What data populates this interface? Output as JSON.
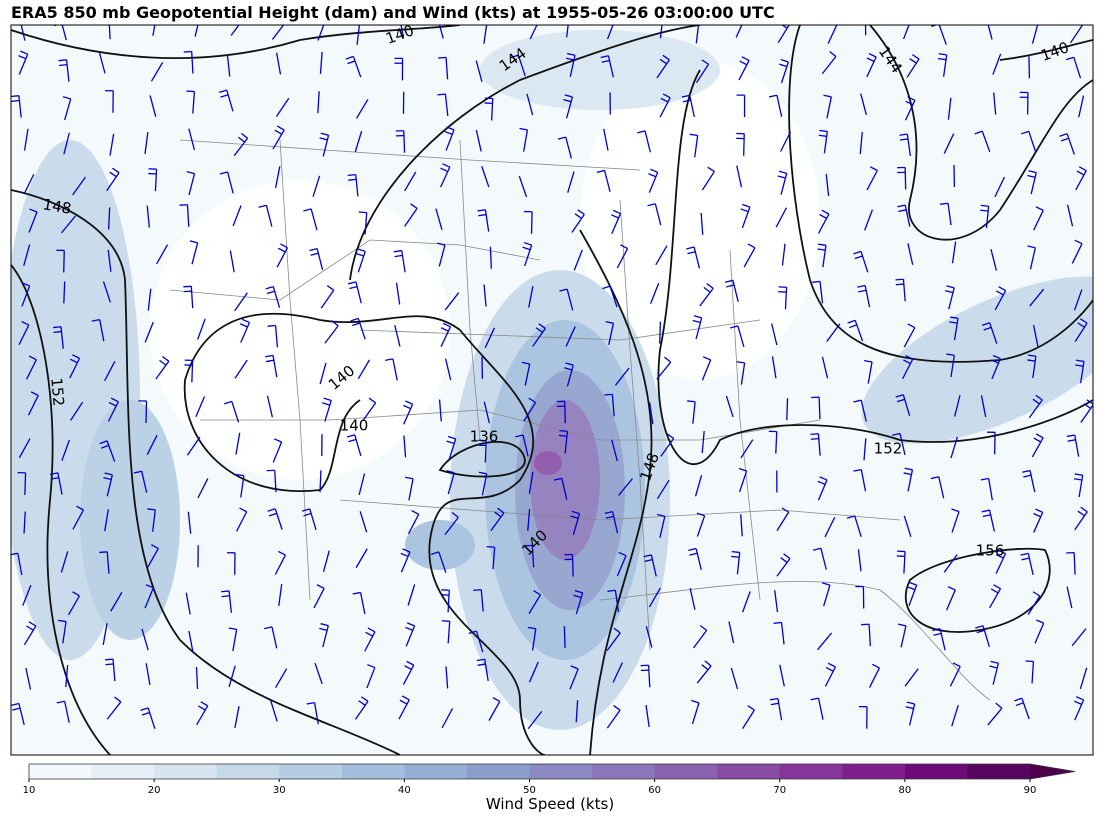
{
  "title": "ERA5 850 mb Geopotential Height (dam) and Wind (kts) at 1955-05-26 03:00:00 UTC",
  "map": {
    "contour_labels": [
      "140",
      "144",
      "144",
      "140",
      "148",
      "152",
      "140",
      "140",
      "136",
      "148",
      "152",
      "140",
      "156"
    ]
  },
  "colorbar": {
    "label": "Wind Speed (kts)",
    "lim": [
      10,
      90
    ],
    "ticks": [
      10,
      20,
      30,
      40,
      50,
      60,
      70,
      80,
      90
    ],
    "colors": [
      "#f2f8fb",
      "#e6eff6",
      "#d8e5f0",
      "#c6d9e9",
      "#b5cce3",
      "#a3bedc",
      "#95aed3",
      "#8d9dcb",
      "#8c8ac2",
      "#8b76b9",
      "#8961ae",
      "#874ca4",
      "#86359a",
      "#801e8d",
      "#6e0a77",
      "#560560"
    ],
    "extend_color": "#4d004b"
  }
}
